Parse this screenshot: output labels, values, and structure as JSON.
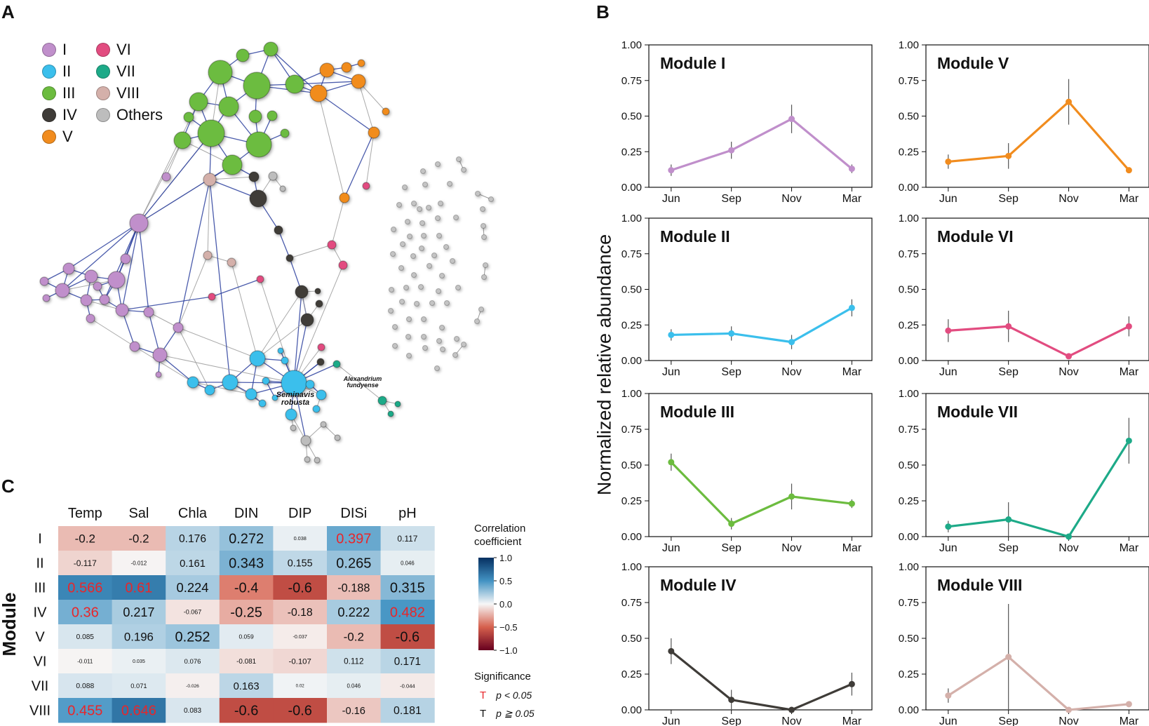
{
  "panels": {
    "a": "A",
    "b": "B",
    "c": "C"
  },
  "legend": [
    {
      "label": "I",
      "color": "#c08fcb"
    },
    {
      "label": "II",
      "color": "#3bbfec"
    },
    {
      "label": "III",
      "color": "#6cbc3f"
    },
    {
      "label": "IV",
      "color": "#3f3c38"
    },
    {
      "label": "V",
      "color": "#f18c1e"
    },
    {
      "label": "VI",
      "color": "#e24c80"
    },
    {
      "label": "VII",
      "color": "#1daa88"
    },
    {
      "label": "VIII",
      "color": "#d4b0aa"
    },
    {
      "label": "Others",
      "color": "#bdbdbd"
    }
  ],
  "network": {
    "annotations": [
      "Seminavis robusta",
      "Alexandrium fundyense"
    ]
  },
  "y_axis_title": "Normalized relative abundance",
  "chart_data": [
    {
      "type": "line",
      "title": "Module I",
      "categories": [
        "Jun",
        "Sep",
        "Nov",
        "Mar"
      ],
      "values": [
        0.12,
        0.26,
        0.48,
        0.13
      ],
      "errors": [
        0.04,
        0.06,
        0.1,
        0.03
      ],
      "ylim": [
        0,
        1
      ],
      "yticks": [
        "0.00",
        "0.25",
        "0.50",
        "0.75",
        "1.00"
      ],
      "color": "#c08fcb"
    },
    {
      "type": "line",
      "title": "Module V",
      "categories": [
        "Jun",
        "Sep",
        "Nov",
        "Mar"
      ],
      "values": [
        0.18,
        0.22,
        0.6,
        0.12
      ],
      "errors": [
        0.05,
        0.09,
        0.16,
        0.02
      ],
      "ylim": [
        0,
        1
      ],
      "yticks": [
        "0.00",
        "0.25",
        "0.50",
        "0.75",
        "1.00"
      ],
      "color": "#f18c1e"
    },
    {
      "type": "line",
      "title": "Module II",
      "categories": [
        "Jun",
        "Sep",
        "Nov",
        "Mar"
      ],
      "values": [
        0.18,
        0.19,
        0.13,
        0.37
      ],
      "errors": [
        0.04,
        0.05,
        0.05,
        0.06
      ],
      "ylim": [
        0,
        1
      ],
      "yticks": [
        "0.00",
        "0.25",
        "0.50",
        "0.75",
        "1.00"
      ],
      "color": "#3bbfec"
    },
    {
      "type": "line",
      "title": "Module VI",
      "categories": [
        "Jun",
        "Sep",
        "Nov",
        "Mar"
      ],
      "values": [
        0.21,
        0.24,
        0.03,
        0.24
      ],
      "errors": [
        0.08,
        0.11,
        0.02,
        0.07
      ],
      "ylim": [
        0,
        1
      ],
      "yticks": [
        "0.00",
        "0.25",
        "0.50",
        "0.75",
        "1.00"
      ],
      "color": "#e24c80"
    },
    {
      "type": "line",
      "title": "Module III",
      "categories": [
        "Jun",
        "Sep",
        "Nov",
        "Mar"
      ],
      "values": [
        0.52,
        0.09,
        0.28,
        0.23
      ],
      "errors": [
        0.06,
        0.04,
        0.09,
        0.03
      ],
      "ylim": [
        0,
        1
      ],
      "yticks": [
        "0.00",
        "0.25",
        "0.50",
        "0.75",
        "1.00"
      ],
      "color": "#6cbc3f"
    },
    {
      "type": "line",
      "title": "Module VII",
      "categories": [
        "Jun",
        "Sep",
        "Nov",
        "Mar"
      ],
      "values": [
        0.07,
        0.12,
        0.0,
        0.67
      ],
      "errors": [
        0.04,
        0.12,
        0.0,
        0.16
      ],
      "ylim": [
        0,
        1
      ],
      "yticks": [
        "0.00",
        "0.25",
        "0.50",
        "0.75",
        "1.00"
      ],
      "color": "#1daa88"
    },
    {
      "type": "line",
      "title": "Module IV",
      "categories": [
        "Jun",
        "Sep",
        "Nov",
        "Mar"
      ],
      "values": [
        0.41,
        0.07,
        0.0,
        0.18
      ],
      "errors": [
        0.09,
        0.07,
        0.0,
        0.08
      ],
      "ylim": [
        0,
        1
      ],
      "yticks": [
        "0.00",
        "0.25",
        "0.50",
        "0.75",
        "1.00"
      ],
      "color": "#3f3c38"
    },
    {
      "type": "line",
      "title": "Module VIII",
      "categories": [
        "Jun",
        "Sep",
        "Nov",
        "Mar"
      ],
      "values": [
        0.1,
        0.37,
        0.0,
        0.04
      ],
      "errors": [
        0.05,
        0.37,
        0.0,
        0.01
      ],
      "ylim": [
        0,
        1
      ],
      "yticks": [
        "0.00",
        "0.25",
        "0.50",
        "0.75",
        "1.00"
      ],
      "color": "#d4b0aa"
    },
    {
      "type": "heatmap",
      "columns": [
        "Temp",
        "Sal",
        "Chla",
        "DIN",
        "DIP",
        "DISi",
        "pH"
      ],
      "rows": [
        "I",
        "II",
        "III",
        "IV",
        "V",
        "VI",
        "VII",
        "VIII"
      ],
      "row_axis_label": "Module",
      "values": [
        [
          -0.2,
          -0.2,
          0.176,
          0.272,
          0.038,
          0.397,
          0.117
        ],
        [
          -0.117,
          -0.012,
          0.161,
          0.343,
          0.155,
          0.265,
          0.046
        ],
        [
          0.566,
          0.61,
          0.224,
          -0.4,
          -0.6,
          -0.188,
          0.315
        ],
        [
          0.36,
          0.217,
          -0.067,
          -0.25,
          -0.18,
          0.222,
          0.482
        ],
        [
          0.085,
          0.196,
          0.252,
          0.059,
          -0.037,
          -0.2,
          -0.6
        ],
        [
          -0.011,
          0.035,
          0.076,
          -0.081,
          -0.107,
          0.112,
          0.171
        ],
        [
          0.088,
          0.071,
          -0.026,
          0.163,
          0.02,
          0.046,
          -0.044
        ],
        [
          0.455,
          0.646,
          0.083,
          -0.6,
          -0.6,
          -0.16,
          0.181
        ]
      ],
      "labels": [
        [
          "-0.2",
          "-0.2",
          "0.176",
          "0.272",
          "0.038",
          "0.397",
          "0.117"
        ],
        [
          "-0.117",
          "-0.012",
          "0.161",
          "0.343",
          "0.155",
          "0.265",
          "0.046"
        ],
        [
          "0.566",
          "0.61",
          "0.224",
          "-0.4",
          "-0.6",
          "-0.188",
          "0.315"
        ],
        [
          "0.36",
          "0.217",
          "-0.067",
          "-0.25",
          "-0.18",
          "0.222",
          "0.482"
        ],
        [
          "0.085",
          "0.196",
          "0.252",
          "0.059",
          "-0.037",
          "-0.2",
          "-0.6"
        ],
        [
          "-0.011",
          "0.035",
          "0.076",
          "-0.081",
          "-0.107",
          "0.112",
          "0.171"
        ],
        [
          "0.088",
          "0.071",
          "-0.026",
          "0.163",
          "0.02",
          "0.046",
          "-0.044"
        ],
        [
          "0.455",
          "0.646",
          "0.083",
          "-0.6",
          "-0.6",
          "-0.16",
          "0.181"
        ]
      ],
      "significant": [
        [
          false,
          false,
          false,
          false,
          false,
          true,
          false
        ],
        [
          false,
          false,
          false,
          false,
          false,
          false,
          false
        ],
        [
          true,
          true,
          false,
          false,
          false,
          false,
          false
        ],
        [
          true,
          false,
          false,
          false,
          false,
          false,
          true
        ],
        [
          false,
          false,
          false,
          false,
          false,
          false,
          false
        ],
        [
          false,
          false,
          false,
          false,
          false,
          false,
          false
        ],
        [
          false,
          false,
          false,
          false,
          false,
          false,
          false
        ],
        [
          true,
          true,
          false,
          false,
          false,
          false,
          false
        ]
      ],
      "colorbar": {
        "title": "Correlation coefficient",
        "title_lines": [
          "Correlation",
          "coefficient"
        ],
        "ticks": [
          "1.0",
          "0.5",
          "0.0",
          "−0.5",
          "−1.0"
        ],
        "range": [
          -1,
          1
        ]
      },
      "significance_legend": {
        "title": "Significance",
        "marker": "T",
        "items": [
          {
            "marker": "T",
            "label": "p < 0.05",
            "color": "#e8262a"
          },
          {
            "marker": "T",
            "label": "p ≧ 0.05",
            "color": "#111111"
          }
        ]
      }
    }
  ]
}
